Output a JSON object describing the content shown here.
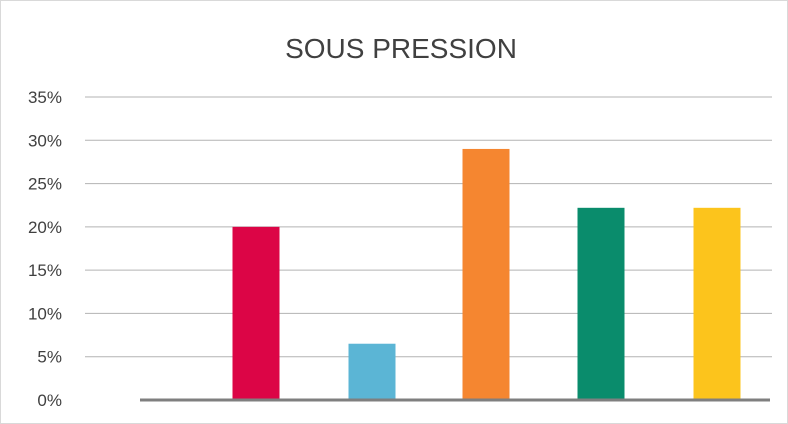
{
  "chart_data": {
    "type": "bar",
    "title": "SOUS PRESSION",
    "xlabel": "",
    "ylabel": "",
    "categories": [
      "",
      "",
      "",
      "",
      "",
      ""
    ],
    "values": [
      0,
      20,
      6.5,
      29,
      22.2,
      22.2
    ],
    "colors": [
      "#999999",
      "#dc0546",
      "#5bb5d5",
      "#f58630",
      "#0a8c6c",
      "#fcc41c"
    ],
    "ylim": [
      0,
      35
    ],
    "yticks": [
      0,
      5,
      10,
      15,
      20,
      25,
      30,
      35
    ],
    "ytick_labels": [
      "0%",
      "5%",
      "10%",
      "15%",
      "20%",
      "25%",
      "30%",
      "35%"
    ],
    "grid": true,
    "legend": "none"
  }
}
